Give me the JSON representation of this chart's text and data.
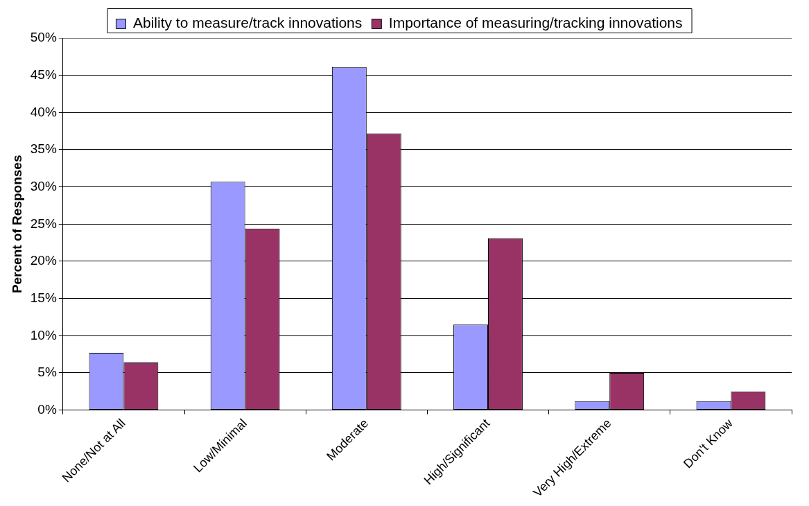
{
  "chart_data": {
    "type": "bar",
    "ylabel": "Percent of Responses",
    "categories": [
      "None/Not at All",
      "Low/Minimal",
      "Moderate",
      "High/Significant",
      "Very High/Extreme",
      "Don't Know"
    ],
    "series": [
      {
        "name": "Ability to measure/track innovations",
        "color": "#9999ff",
        "values": [
          7.7,
          30.7,
          46.1,
          11.5,
          1.2,
          1.2
        ]
      },
      {
        "name": "Importance of measuring/tracking innovations",
        "color": "#993366",
        "values": [
          6.4,
          24.4,
          37.2,
          23.1,
          5.0,
          2.5
        ]
      }
    ],
    "ylim": [
      0,
      50
    ],
    "yticks": [
      {
        "value": 0,
        "label": "0%"
      },
      {
        "value": 5,
        "label": "5%"
      },
      {
        "value": 10,
        "label": "10%"
      },
      {
        "value": 15,
        "label": "15%"
      },
      {
        "value": 20,
        "label": "20%"
      },
      {
        "value": 25,
        "label": "25%"
      },
      {
        "value": 30,
        "label": "30%"
      },
      {
        "value": 35,
        "label": "35%"
      },
      {
        "value": 40,
        "label": "40%"
      },
      {
        "value": 45,
        "label": "45%"
      },
      {
        "value": 50,
        "label": "50%"
      }
    ],
    "grid": "y",
    "legend": "top"
  }
}
